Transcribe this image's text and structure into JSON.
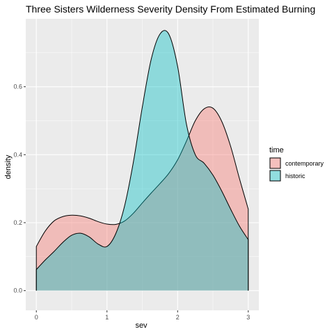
{
  "chart_data": {
    "type": "area",
    "title": "Three Sisters Wilderness Severity Density From Estimated Burning",
    "xlabel": "sev",
    "ylabel": "density",
    "xlim": [
      -0.15,
      3.15
    ],
    "ylim": [
      -0.058,
      0.8
    ],
    "x_ticks": [
      "0",
      "1",
      "2",
      "3"
    ],
    "x_tick_values": [
      0,
      1,
      2,
      3
    ],
    "y_ticks": [
      "0.0",
      "0.2",
      "0.4",
      "0.6"
    ],
    "y_tick_values": [
      0,
      0.2,
      0.4,
      0.6
    ],
    "grid": true,
    "background": "#ebebeb",
    "legend": {
      "title": "time",
      "position": "right",
      "entries": [
        "contemporary",
        "historic"
      ]
    },
    "series": [
      {
        "name": "contemporary",
        "color": "#f8766d",
        "opacity": 0.4,
        "x": [
          0,
          0.125,
          0.25,
          0.375,
          0.5,
          0.625,
          0.75,
          0.875,
          1.0,
          1.125,
          1.25,
          1.375,
          1.5,
          1.625,
          1.75,
          1.875,
          2.0,
          2.125,
          2.25,
          2.375,
          2.5,
          2.625,
          2.75,
          2.875,
          3.0
        ],
        "y": [
          0.13,
          0.175,
          0.205,
          0.218,
          0.222,
          0.22,
          0.213,
          0.203,
          0.196,
          0.195,
          0.205,
          0.228,
          0.258,
          0.287,
          0.315,
          0.345,
          0.385,
          0.44,
          0.5,
          0.535,
          0.537,
          0.498,
          0.425,
          0.33,
          0.24
        ]
      },
      {
        "name": "historic",
        "color": "#00bfc4",
        "opacity": 0.4,
        "x": [
          0,
          0.125,
          0.25,
          0.375,
          0.5,
          0.625,
          0.75,
          0.875,
          1.0,
          1.125,
          1.25,
          1.375,
          1.5,
          1.625,
          1.75,
          1.875,
          2.0,
          2.125,
          2.25,
          2.375,
          2.5,
          2.625,
          2.75,
          2.875,
          3.0
        ],
        "y": [
          0.062,
          0.09,
          0.115,
          0.142,
          0.163,
          0.169,
          0.158,
          0.137,
          0.13,
          0.168,
          0.25,
          0.38,
          0.54,
          0.68,
          0.755,
          0.755,
          0.66,
          0.49,
          0.4,
          0.375,
          0.34,
          0.293,
          0.24,
          0.19,
          0.15
        ]
      }
    ]
  }
}
